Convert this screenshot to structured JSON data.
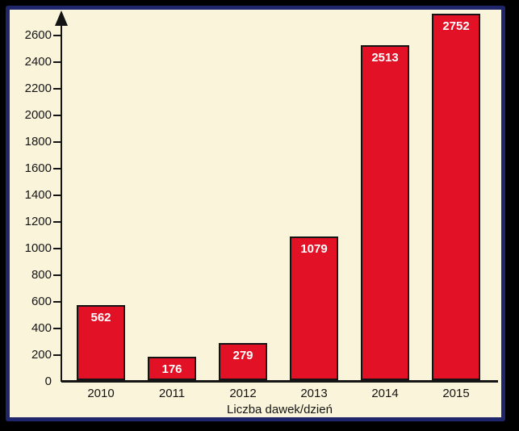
{
  "chart_data": {
    "type": "bar",
    "categories": [
      "2010",
      "2011",
      "2012",
      "2013",
      "2014",
      "2015"
    ],
    "values": [
      562,
      176,
      279,
      1079,
      2513,
      2752
    ],
    "title": "",
    "xlabel": "Liczba dawek/dzień",
    "ylabel": "",
    "ylim": [
      0,
      2600
    ],
    "yticks": [
      0,
      200,
      400,
      600,
      800,
      1000,
      1200,
      1400,
      1600,
      1800,
      2000,
      2200,
      2400,
      2600
    ],
    "grid": false,
    "legend": false,
    "value_labels_inside_bars": true,
    "y_axis_arrow": true,
    "colors": {
      "bar_fill": "#e31126",
      "bar_border": "#141414",
      "value_label_text": "#ffffff",
      "axis": "#141414",
      "tick_text": "#141414",
      "panel_background": "#faf5da",
      "frame_inner_border": "#20266b",
      "frame_outer_border": "#000000"
    }
  }
}
